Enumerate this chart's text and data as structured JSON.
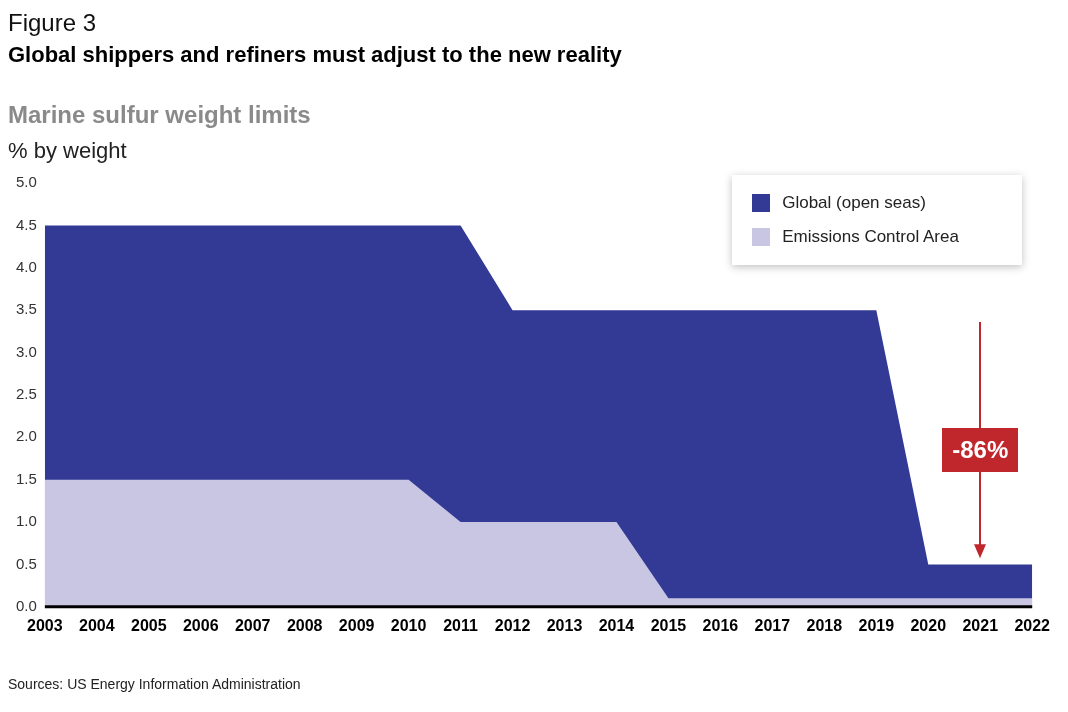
{
  "chart_data": {
    "type": "area",
    "title": "Global shippers and refiners must adjust to the new reality",
    "subtitle": "Marine sulfur weight limits",
    "ylabel": "% by weight",
    "categories": [
      "2003",
      "2004",
      "2005",
      "2006",
      "2007",
      "2008",
      "2009",
      "2010",
      "2011",
      "2012",
      "2013",
      "2014",
      "2015",
      "2016",
      "2017",
      "2018",
      "2019",
      "2020",
      "2021",
      "2022"
    ],
    "series": [
      {
        "name": "Global (open seas)",
        "color": "#323a96",
        "values": [
          4.5,
          4.5,
          4.5,
          4.5,
          4.5,
          4.5,
          4.5,
          4.5,
          4.5,
          3.5,
          3.5,
          3.5,
          3.5,
          3.5,
          3.5,
          3.5,
          3.5,
          0.5,
          0.5,
          0.5
        ]
      },
      {
        "name": "Emissions Control Area",
        "color": "#c9c6e4",
        "values": [
          1.5,
          1.5,
          1.5,
          1.5,
          1.5,
          1.5,
          1.5,
          1.5,
          1.0,
          1.0,
          1.0,
          1.0,
          0.1,
          0.1,
          0.1,
          0.1,
          0.1,
          0.1,
          0.1,
          0.1
        ]
      }
    ],
    "ylim": [
      0,
      5
    ],
    "yticks": [
      {
        "value": 0,
        "label": "0.0"
      },
      {
        "value": 0.5,
        "label": "0.5"
      },
      {
        "value": 1,
        "label": "1.0"
      },
      {
        "value": 1.5,
        "label": "1.5"
      },
      {
        "value": 2,
        "label": "2.0"
      },
      {
        "value": 2.5,
        "label": "2.5"
      },
      {
        "value": 3,
        "label": "3.0"
      },
      {
        "value": 3.5,
        "label": "3.5"
      },
      {
        "value": 4,
        "label": "4.0"
      },
      {
        "value": 4.5,
        "label": "4.5"
      },
      {
        "value": 5,
        "label": "5.0"
      }
    ],
    "grid": false,
    "legend": "top right",
    "annotations": [
      "Figure 3",
      "-86%",
      "Sources: US Energy Information Administration"
    ]
  }
}
